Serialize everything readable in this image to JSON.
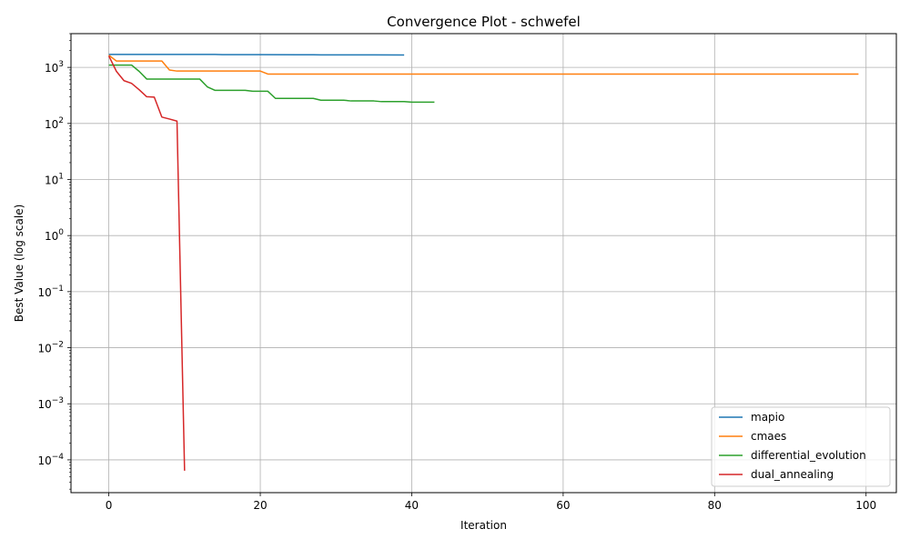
{
  "chart_data": {
    "type": "line",
    "title": "Convergence Plot - schwefel",
    "xlabel": "Iteration",
    "ylabel": "Best Value (log scale)",
    "xlim": [
      -5,
      104
    ],
    "ylim": [
      2.6e-05,
      4000
    ],
    "yscale": "log",
    "xticks": [
      0,
      20,
      40,
      60,
      80,
      100
    ],
    "xtick_labels": [
      "0",
      "20",
      "40",
      "60",
      "80",
      "100"
    ],
    "yticks": [
      {
        "value": 0.0001,
        "base": "10",
        "exp": "−4"
      },
      {
        "value": 0.001,
        "base": "10",
        "exp": "−3"
      },
      {
        "value": 0.01,
        "base": "10",
        "exp": "−2"
      },
      {
        "value": 0.1,
        "base": "10",
        "exp": "−1"
      },
      {
        "value": 1,
        "base": "10",
        "exp": "0"
      },
      {
        "value": 10,
        "base": "10",
        "exp": "1"
      },
      {
        "value": 100,
        "base": "10",
        "exp": "2"
      },
      {
        "value": 1000,
        "base": "10",
        "exp": "3"
      }
    ],
    "grid": true,
    "legend_position": "lower-right",
    "series": [
      {
        "name": "mapio",
        "color": "#1f77b4",
        "x": [
          0,
          5,
          10,
          14,
          15,
          20,
          25,
          27,
          28,
          33,
          35,
          39
        ],
        "y": [
          1700,
          1700,
          1700,
          1700,
          1690,
          1685,
          1683,
          1680,
          1675,
          1672,
          1668,
          1665
        ]
      },
      {
        "name": "cmaes",
        "color": "#ff7f0e",
        "x": [
          0,
          1,
          2,
          3,
          4,
          5,
          6,
          7,
          8,
          9,
          10,
          20,
          21,
          22,
          99
        ],
        "y": [
          1650,
          1300,
          1300,
          1300,
          1300,
          1300,
          1300,
          1300,
          900,
          860,
          860,
          860,
          760,
          760,
          760
        ]
      },
      {
        "name": "differential_evolution",
        "color": "#2ca02c",
        "x": [
          0,
          1,
          2,
          3,
          4,
          5,
          6,
          7,
          8,
          9,
          10,
          11,
          12,
          13,
          14,
          15,
          16,
          17,
          18,
          19,
          20,
          21,
          22,
          23,
          24,
          25,
          26,
          27,
          28,
          29,
          30,
          31,
          32,
          33,
          34,
          35,
          36,
          37,
          38,
          39,
          40,
          41,
          42,
          43
        ],
        "y": [
          1100,
          1100,
          1100,
          1100,
          850,
          620,
          620,
          620,
          620,
          620,
          620,
          620,
          620,
          450,
          390,
          390,
          390,
          390,
          390,
          375,
          375,
          375,
          280,
          280,
          280,
          280,
          280,
          280,
          260,
          260,
          260,
          260,
          252,
          252,
          252,
          252,
          245,
          245,
          245,
          245,
          240,
          240,
          240,
          240
        ]
      },
      {
        "name": "dual_annealing",
        "color": "#d62728",
        "x": [
          0,
          1,
          2,
          3,
          4,
          5,
          6,
          7,
          8,
          9,
          10
        ],
        "y": [
          1600,
          850,
          580,
          520,
          400,
          300,
          295,
          130,
          120,
          110,
          6.4e-05
        ]
      }
    ]
  }
}
